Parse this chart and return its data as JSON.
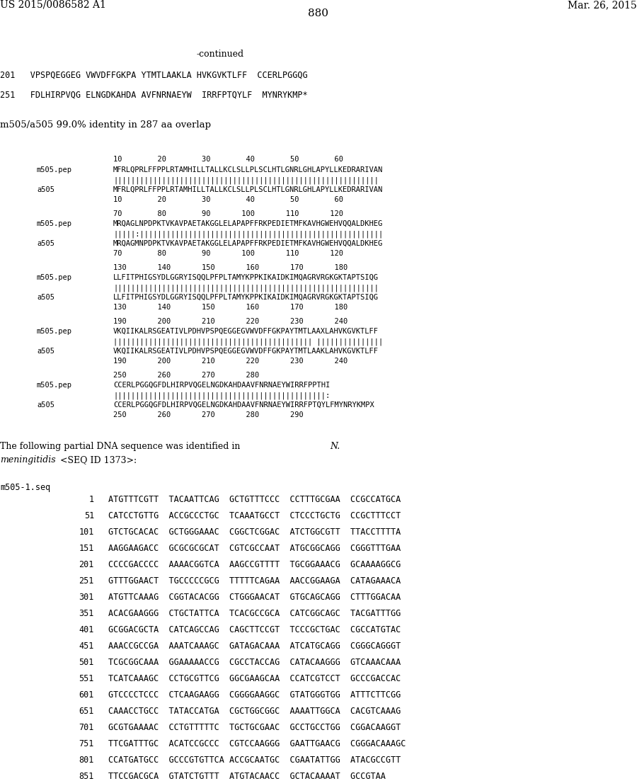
{
  "header_left": "US 2015/0086582 A1",
  "header_right": "Mar. 26, 2015",
  "page_number": "880",
  "bg_color": "#ffffff",
  "text_color": "#000000"
}
